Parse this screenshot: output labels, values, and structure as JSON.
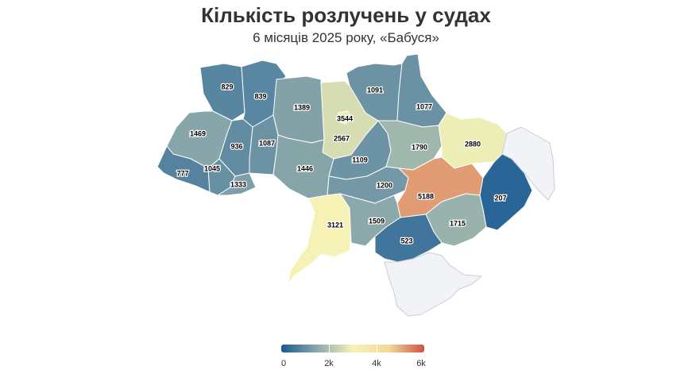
{
  "title": "Кількість розлучень у судах",
  "subtitle": "6 місяців 2025 року, «Бабуся»",
  "colors": {
    "scale": [
      "#1a5a93",
      "#8aa8aa",
      "#f6f3b7",
      "#f3d89a",
      "#cc5545"
    ],
    "occupied": "#f2f3f7",
    "border": "#ffffff"
  },
  "legend": {
    "labels": [
      "0",
      "2k",
      "4k",
      "6k"
    ],
    "min": 0,
    "max": 6000
  },
  "chart_data": {
    "type": "choropleth",
    "regions": [
      {
        "id": "volyn",
        "value": 829
      },
      {
        "id": "rivne",
        "value": 839
      },
      {
        "id": "zhytomyr",
        "value": 1389
      },
      {
        "id": "kyiv-oblast",
        "value": 2567
      },
      {
        "id": "kyiv-city",
        "value": 3544
      },
      {
        "id": "chernihiv",
        "value": 1091
      },
      {
        "id": "sumy",
        "value": 1077
      },
      {
        "id": "lviv",
        "value": 1469
      },
      {
        "id": "ternopil",
        "value": 936
      },
      {
        "id": "khmelnytskyi",
        "value": 1087
      },
      {
        "id": "vinnytsia",
        "value": 1446
      },
      {
        "id": "cherkasy",
        "value": 1109
      },
      {
        "id": "poltava",
        "value": 1790
      },
      {
        "id": "kharkiv",
        "value": 2880
      },
      {
        "id": "zakarpattia",
        "value": 777
      },
      {
        "id": "ivano-frankivsk",
        "value": 1045
      },
      {
        "id": "chernivtsi",
        "value": 1333
      },
      {
        "id": "kirovohrad",
        "value": 1200
      },
      {
        "id": "dnipropetrovsk",
        "value": 5188
      },
      {
        "id": "donetsk",
        "value": 207
      },
      {
        "id": "odesa",
        "value": 3121
      },
      {
        "id": "mykolaiv",
        "value": 1509
      },
      {
        "id": "zaporizhzhia",
        "value": 1715
      },
      {
        "id": "kherson",
        "value": 523
      },
      {
        "id": "luhansk",
        "value": null
      },
      {
        "id": "crimea",
        "value": null
      }
    ]
  }
}
